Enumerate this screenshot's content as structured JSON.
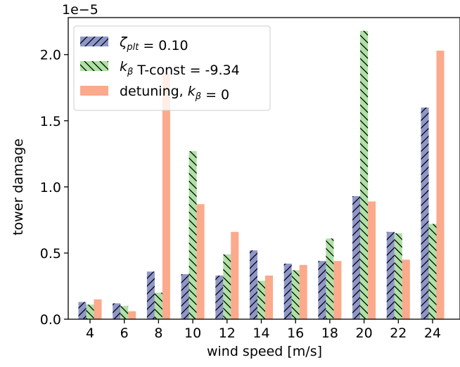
{
  "chart_data": {
    "type": "bar",
    "xlabel": "wind speed [m/s]",
    "ylabel": "tower damage",
    "offset_text": "1e−5",
    "categories": [
      "4",
      "6",
      "8",
      "10",
      "12",
      "14",
      "16",
      "18",
      "20",
      "22",
      "24"
    ],
    "ylim": [
      0,
      2.28
    ],
    "yticks": [
      "0.0",
      "0.5",
      "1.0",
      "1.5",
      "2.0"
    ],
    "grid": false,
    "legend_position": "top-left",
    "series": [
      {
        "name": "ζplt = 0.10",
        "color": "#8e96c8",
        "hatch": "forward-diagonal",
        "values": [
          0.13,
          0.12,
          0.36,
          0.34,
          0.33,
          0.52,
          0.42,
          0.44,
          0.93,
          0.66,
          1.6
        ]
      },
      {
        "name": "kβ T-const = -9.34",
        "color": "#aee1a4",
        "hatch": "back-diagonal",
        "values": [
          0.11,
          0.1,
          0.2,
          1.27,
          0.49,
          0.29,
          0.37,
          0.61,
          2.18,
          0.65,
          0.72
        ]
      },
      {
        "name": "detuning, kβ = 0",
        "color": "#fca98c",
        "hatch": "none",
        "values": [
          0.15,
          0.06,
          1.85,
          0.87,
          0.66,
          0.33,
          0.41,
          0.44,
          0.89,
          0.45,
          2.03
        ]
      }
    ]
  }
}
